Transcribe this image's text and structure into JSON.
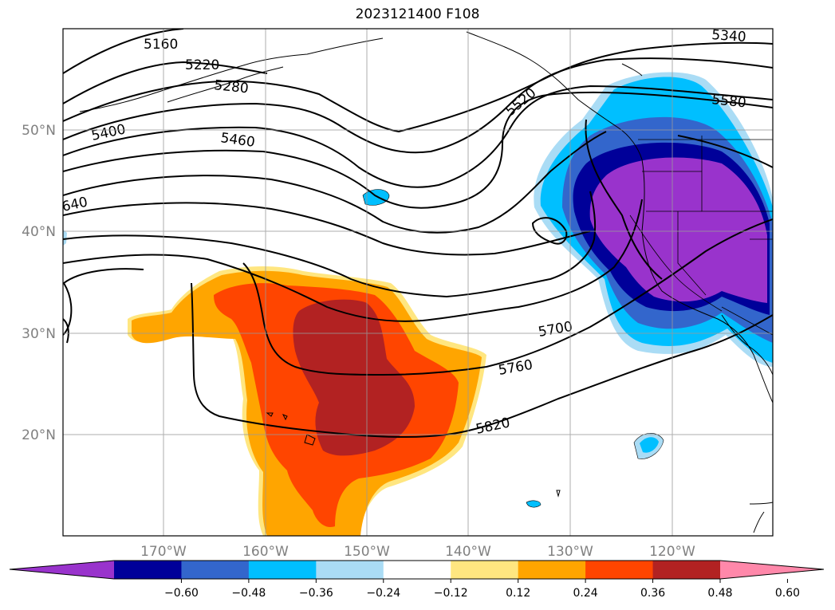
{
  "title": "2023121400 F108",
  "lon_labels": [
    "170°W",
    "160°W",
    "150°W",
    "140°W",
    "130°W",
    "120°W"
  ],
  "lat_labels": [
    "50°N",
    "40°N",
    "30°N",
    "20°N"
  ],
  "contour_labels": [
    "5160",
    "5220",
    "5280",
    "5340",
    "5400",
    "5460",
    "5520",
    "5580",
    "640",
    "5700",
    "5760",
    "5820"
  ],
  "colorbar": {
    "ticks": [
      "−0.60",
      "−0.48",
      "−0.36",
      "−0.24",
      "−0.12",
      "0.12",
      "0.24",
      "0.36",
      "0.48",
      "0.60"
    ],
    "colors": [
      "#9933cc",
      "#000099",
      "#3366cc",
      "#00bfff",
      "#aadcf5",
      "#ffffff",
      "#ffe680",
      "#ffa500",
      "#ff4500",
      "#b22222",
      "#ff88aa"
    ]
  },
  "colors": {
    "neg_strong": "#9933cc",
    "pos_strong": "#b22222"
  }
}
